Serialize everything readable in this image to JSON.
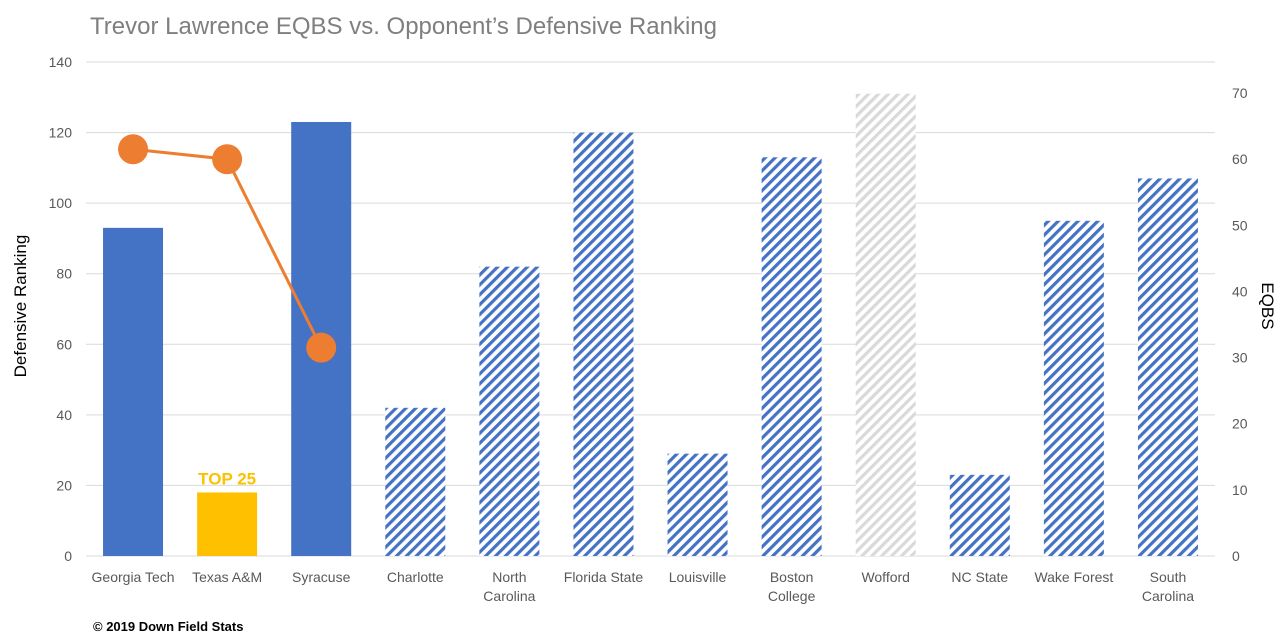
{
  "chart_data": {
    "type": "bar",
    "title": "Trevor Lawrence EQBS vs. Opponent’s Defensive Ranking",
    "ylabel": "Defensive  Ranking",
    "y2label": "EQBS",
    "ylim": [
      0,
      140
    ],
    "y2lim": [
      0,
      74.7
    ],
    "yticks": [
      "0",
      "20",
      "40",
      "60",
      "80",
      "100",
      "120",
      "140"
    ],
    "y2ticks": [
      "0",
      "10",
      "20",
      "30",
      "40",
      "50",
      "60",
      "70"
    ],
    "categories": [
      [
        "Georgia Tech"
      ],
      [
        "Texas A&M"
      ],
      [
        "Syracuse"
      ],
      [
        "Charlotte"
      ],
      [
        "North",
        "Carolina"
      ],
      [
        "Florida State"
      ],
      [
        "Louisville"
      ],
      [
        "Boston",
        "College"
      ],
      [
        "Wofford"
      ],
      [
        "NC State"
      ],
      [
        "Wake Forest"
      ],
      [
        "South",
        "Carolina"
      ]
    ],
    "series": [
      {
        "kind": "bar",
        "axis": "left",
        "values": [
          93,
          18,
          123,
          42,
          82,
          120,
          29,
          113,
          131,
          23,
          95,
          107
        ],
        "styles": [
          "solid",
          "top25",
          "solid",
          "hatched",
          "hatched",
          "hatched",
          "hatched",
          "hatched",
          "hatched-gray",
          "hatched",
          "hatched",
          "hatched"
        ]
      },
      {
        "kind": "line",
        "axis": "right",
        "values": [
          61.5,
          60,
          31.5,
          null,
          null,
          null,
          null,
          null,
          null,
          null,
          null,
          null
        ]
      }
    ],
    "annotations": [
      {
        "text": "TOP  25",
        "category_index": 1
      }
    ],
    "grid": true,
    "colors": {
      "bar": "#4472c4",
      "top25": "#ffc000",
      "gray": "#d9d9d9",
      "line": "#ed7d31",
      "grid": "#d9d9d9",
      "title": "#7f7f7f"
    }
  },
  "credit": "© 2019  Down Field Stats"
}
